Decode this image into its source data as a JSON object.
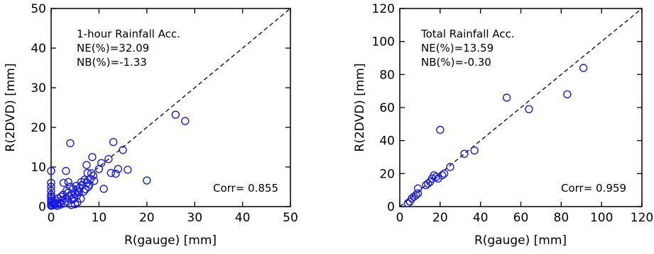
{
  "chart_data": [
    {
      "type": "scatter",
      "xlabel": "R(gauge) [mm]",
      "ylabel": "R(2DVD) [mm]",
      "xlim": [
        0,
        50
      ],
      "ylim": [
        0,
        50
      ],
      "xticks": [
        "0",
        "10",
        "20",
        "30",
        "40",
        "50"
      ],
      "yticks": [
        "0",
        "10",
        "20",
        "30",
        "40",
        "50"
      ],
      "annotations": [
        "1-hour Rainfall Acc.",
        "NE(%)=32.09",
        "NB(%)=-1.33"
      ],
      "corr_label": "Corr= 0.855",
      "reference_line": "1:1 dashed",
      "marker_color": "#1a1ae6",
      "points": [
        [
          0,
          9
        ],
        [
          0,
          6
        ],
        [
          0,
          5
        ],
        [
          0,
          4
        ],
        [
          0,
          3
        ],
        [
          0,
          2.5
        ],
        [
          0,
          2
        ],
        [
          0,
          1.5
        ],
        [
          0,
          1
        ],
        [
          0,
          0.5
        ],
        [
          0,
          0.2
        ],
        [
          0.3,
          0.3
        ],
        [
          0.5,
          0.7
        ],
        [
          0.6,
          1.2
        ],
        [
          0.8,
          0.4
        ],
        [
          1,
          1.5
        ],
        [
          1.2,
          0.8
        ],
        [
          1.3,
          0.2
        ],
        [
          1.5,
          2.1
        ],
        [
          1.8,
          1
        ],
        [
          2,
          0.5
        ],
        [
          2.1,
          2.5
        ],
        [
          2.3,
          1.6
        ],
        [
          2.5,
          3
        ],
        [
          2.6,
          6
        ],
        [
          2.8,
          0.9
        ],
        [
          3,
          2
        ],
        [
          3.1,
          9
        ],
        [
          3.2,
          4
        ],
        [
          3.4,
          1.3
        ],
        [
          3.5,
          3.5
        ],
        [
          3.6,
          6.2
        ],
        [
          3.8,
          2.6
        ],
        [
          4,
          16
        ],
        [
          4,
          5
        ],
        [
          4.2,
          0.4
        ],
        [
          4.3,
          3
        ],
        [
          4.5,
          1.8
        ],
        [
          4.6,
          4.5
        ],
        [
          4.8,
          2.2
        ],
        [
          5,
          3.3
        ],
        [
          5,
          0.6
        ],
        [
          5.2,
          5.2
        ],
        [
          5.4,
          2.8
        ],
        [
          5.5,
          1.1
        ],
        [
          5.6,
          4
        ],
        [
          5.8,
          3.6
        ],
        [
          6,
          4.8
        ],
        [
          6.2,
          2
        ],
        [
          6.3,
          6.2
        ],
        [
          6.5,
          5.5
        ],
        [
          6.8,
          3.8
        ],
        [
          7,
          6.8
        ],
        [
          7.2,
          4.4
        ],
        [
          7.4,
          10.5
        ],
        [
          7.5,
          6
        ],
        [
          7.6,
          8.5
        ],
        [
          7.8,
          5
        ],
        [
          8,
          5.6
        ],
        [
          8.2,
          7
        ],
        [
          8.4,
          8.4
        ],
        [
          8.6,
          12.5
        ],
        [
          8.8,
          7.8
        ],
        [
          9,
          6.5
        ],
        [
          10,
          9.5
        ],
        [
          10.5,
          11
        ],
        [
          11,
          4.5
        ],
        [
          12,
          12
        ],
        [
          12.5,
          8.5
        ],
        [
          13,
          16.3
        ],
        [
          13.5,
          8.3
        ],
        [
          14,
          9.5
        ],
        [
          15,
          14.3
        ],
        [
          16,
          9.3
        ],
        [
          20,
          6.6
        ],
        [
          26,
          23.2
        ],
        [
          28,
          21.6
        ]
      ]
    },
    {
      "type": "scatter",
      "xlabel": "R(gauge) [mm]",
      "ylabel": "R(2DVD) [mm]",
      "xlim": [
        0,
        120
      ],
      "ylim": [
        0,
        120
      ],
      "xticks": [
        "0",
        "20",
        "40",
        "60",
        "80",
        "100",
        "120"
      ],
      "yticks": [
        "0",
        "20",
        "40",
        "60",
        "80",
        "100",
        "120"
      ],
      "annotations": [
        "Total Rainfall Acc.",
        "NE(%)=13.59",
        "NB(%)=-0.30"
      ],
      "corr_label": "Corr= 0.959",
      "reference_line": "1:1 dashed",
      "marker_color": "#1a1ae6",
      "points": [
        [
          4,
          2
        ],
        [
          5,
          3
        ],
        [
          6,
          5
        ],
        [
          7,
          6
        ],
        [
          8,
          7
        ],
        [
          9,
          8
        ],
        [
          9,
          11
        ],
        [
          13,
          13
        ],
        [
          14,
          14
        ],
        [
          15,
          15
        ],
        [
          16,
          17
        ],
        [
          17,
          19
        ],
        [
          18,
          18
        ],
        [
          19,
          17
        ],
        [
          20,
          46.5
        ],
        [
          21,
          19
        ],
        [
          22,
          20
        ],
        [
          25,
          24
        ],
        [
          32,
          32
        ],
        [
          37,
          34
        ],
        [
          53,
          66
        ],
        [
          64,
          59
        ],
        [
          83,
          68
        ],
        [
          91,
          84
        ]
      ]
    }
  ]
}
